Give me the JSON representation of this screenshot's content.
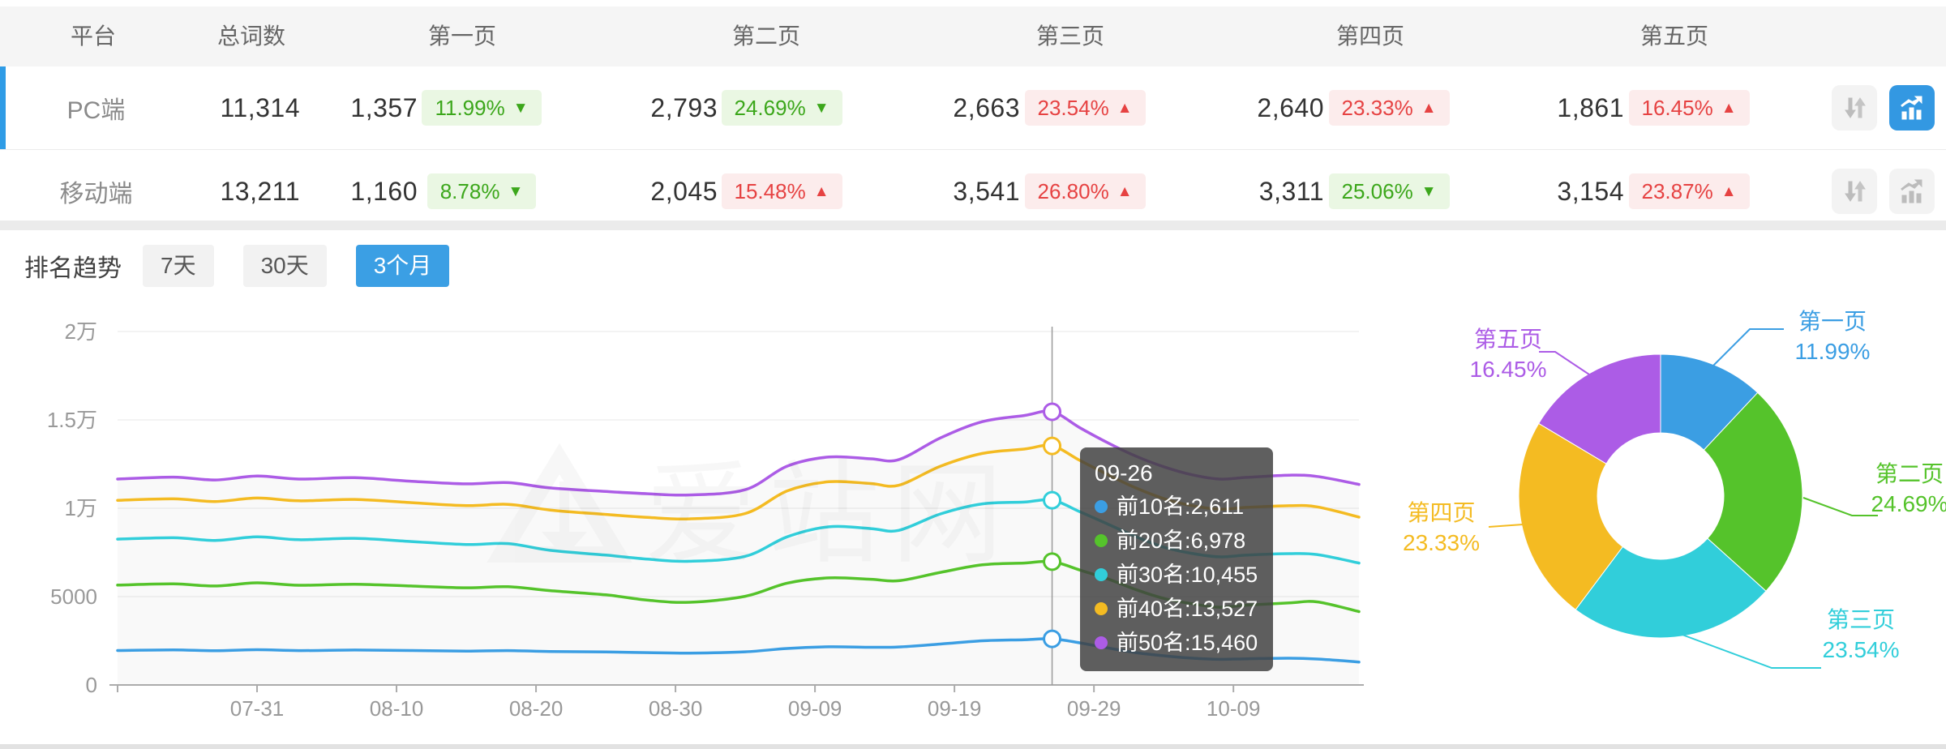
{
  "table": {
    "headers": [
      "平台",
      "总词数",
      "第一页",
      "第二页",
      "第三页",
      "第四页",
      "第五页"
    ],
    "rows": [
      {
        "platform": "PC端",
        "total": "11,314",
        "selected": "true",
        "chart_active": "true",
        "pages": [
          {
            "count": "1,357",
            "pct": "11.99%",
            "trend": "down"
          },
          {
            "count": "2,793",
            "pct": "24.69%",
            "trend": "down"
          },
          {
            "count": "2,663",
            "pct": "23.54%",
            "trend": "up"
          },
          {
            "count": "2,640",
            "pct": "23.33%",
            "trend": "up"
          },
          {
            "count": "1,861",
            "pct": "16.45%",
            "trend": "up"
          }
        ]
      },
      {
        "platform": "移动端",
        "total": "13,211",
        "selected": "false",
        "chart_active": "false",
        "pages": [
          {
            "count": "1,160",
            "pct": "8.78%",
            "trend": "down"
          },
          {
            "count": "2,045",
            "pct": "15.48%",
            "trend": "up"
          },
          {
            "count": "3,541",
            "pct": "26.80%",
            "trend": "up"
          },
          {
            "count": "3,311",
            "pct": "25.06%",
            "trend": "down"
          },
          {
            "count": "3,154",
            "pct": "23.87%",
            "trend": "up"
          }
        ]
      }
    ]
  },
  "trend": {
    "title": "排名趋势",
    "tabs": [
      {
        "label": "7天",
        "active": "false"
      },
      {
        "label": "30天",
        "active": "false"
      },
      {
        "label": "3个月",
        "active": "true"
      }
    ]
  },
  "tooltip": {
    "date": "09-26",
    "items": [
      {
        "name": "前10名",
        "value": "2,611",
        "color": "#3b9ee3"
      },
      {
        "name": "前20名",
        "value": "6,978",
        "color": "#55c32b"
      },
      {
        "name": "前30名",
        "value": "10,455",
        "color": "#31ceda"
      },
      {
        "name": "前40名",
        "value": "13,527",
        "color": "#f4bb22"
      },
      {
        "name": "前50名",
        "value": "15,460",
        "color": "#ac5ce6"
      }
    ]
  },
  "watermark": "爱站网",
  "chart_data": [
    {
      "type": "line",
      "title": "排名趋势 3个月",
      "ylim": [
        0,
        20000
      ],
      "y_ticks": [
        {
          "value": 0,
          "label": "0"
        },
        {
          "value": 5000,
          "label": "5000"
        },
        {
          "value": 10000,
          "label": "1万"
        },
        {
          "value": 15000,
          "label": "1.5万"
        },
        {
          "value": 20000,
          "label": "2万"
        }
      ],
      "x_domain_days": 89,
      "x_ticks": [
        {
          "day": 0,
          "label": ""
        },
        {
          "day": 10,
          "label": "07-31"
        },
        {
          "day": 20,
          "label": "08-10"
        },
        {
          "day": 30,
          "label": "08-20"
        },
        {
          "day": 40,
          "label": "08-30"
        },
        {
          "day": 50,
          "label": "09-09"
        },
        {
          "day": 60,
          "label": "09-19"
        },
        {
          "day": 70,
          "label": "09-29"
        },
        {
          "day": 80,
          "label": "10-09"
        }
      ],
      "crosshair": {
        "day": 67,
        "date": "09-26"
      },
      "series": [
        {
          "name": "前10名",
          "color": "#3b9ee3",
          "crosshair_value": 2611,
          "anchors": [
            [
              0,
              1950
            ],
            [
              4,
              1985
            ],
            [
              7,
              1940
            ],
            [
              10,
              1995
            ],
            [
              13,
              1945
            ],
            [
              17,
              1975
            ],
            [
              21,
              1950
            ],
            [
              25,
              1915
            ],
            [
              28,
              1945
            ],
            [
              31,
              1895
            ],
            [
              35,
              1865
            ],
            [
              38,
              1830
            ],
            [
              41,
              1805
            ],
            [
              45,
              1875
            ],
            [
              48,
              2065
            ],
            [
              51,
              2160
            ],
            [
              54,
              2135
            ],
            [
              56,
              2150
            ],
            [
              59,
              2315
            ],
            [
              62,
              2500
            ],
            [
              65,
              2560
            ],
            [
              67,
              2611
            ],
            [
              69,
              2380
            ],
            [
              71,
              2095
            ],
            [
              73,
              1830
            ],
            [
              75,
              1650
            ],
            [
              77,
              1520
            ],
            [
              79,
              1450
            ],
            [
              81,
              1480
            ],
            [
              84,
              1515
            ],
            [
              86,
              1470
            ],
            [
              89,
              1300
            ]
          ]
        },
        {
          "name": "前20名",
          "color": "#55c32b",
          "crosshair_value": 6978,
          "anchors": [
            [
              0,
              5650
            ],
            [
              4,
              5720
            ],
            [
              7,
              5600
            ],
            [
              10,
              5780
            ],
            [
              13,
              5640
            ],
            [
              17,
              5700
            ],
            [
              21,
              5600
            ],
            [
              25,
              5500
            ],
            [
              28,
              5560
            ],
            [
              31,
              5340
            ],
            [
              35,
              5100
            ],
            [
              38,
              4800
            ],
            [
              41,
              4680
            ],
            [
              45,
              5020
            ],
            [
              48,
              5760
            ],
            [
              51,
              6060
            ],
            [
              54,
              5980
            ],
            [
              56,
              5900
            ],
            [
              59,
              6370
            ],
            [
              62,
              6800
            ],
            [
              65,
              6900
            ],
            [
              67,
              6978
            ],
            [
              69,
              6500
            ],
            [
              71,
              6000
            ],
            [
              73,
              5400
            ],
            [
              75,
              4900
            ],
            [
              77,
              4600
            ],
            [
              79,
              4400
            ],
            [
              81,
              4520
            ],
            [
              84,
              4640
            ],
            [
              86,
              4700
            ],
            [
              89,
              4150
            ]
          ]
        },
        {
          "name": "前30名",
          "color": "#31ceda",
          "crosshair_value": 10455,
          "anchors": [
            [
              0,
              8250
            ],
            [
              4,
              8330
            ],
            [
              7,
              8180
            ],
            [
              10,
              8380
            ],
            [
              13,
              8220
            ],
            [
              17,
              8300
            ],
            [
              21,
              8120
            ],
            [
              25,
              7950
            ],
            [
              28,
              8000
            ],
            [
              31,
              7620
            ],
            [
              35,
              7350
            ],
            [
              38,
              7120
            ],
            [
              41,
              7000
            ],
            [
              45,
              7280
            ],
            [
              48,
              8380
            ],
            [
              51,
              8950
            ],
            [
              54,
              8850
            ],
            [
              56,
              8750
            ],
            [
              59,
              9680
            ],
            [
              62,
              10250
            ],
            [
              65,
              10350
            ],
            [
              67,
              10455
            ],
            [
              69,
              9800
            ],
            [
              71,
              9100
            ],
            [
              73,
              8400
            ],
            [
              75,
              7800
            ],
            [
              77,
              7450
            ],
            [
              79,
              7250
            ],
            [
              81,
              7350
            ],
            [
              84,
              7430
            ],
            [
              86,
              7380
            ],
            [
              89,
              6900
            ]
          ]
        },
        {
          "name": "前40名",
          "color": "#f4bb22",
          "crosshair_value": 13527,
          "anchors": [
            [
              0,
              10450
            ],
            [
              4,
              10530
            ],
            [
              7,
              10380
            ],
            [
              10,
              10580
            ],
            [
              13,
              10420
            ],
            [
              17,
              10500
            ],
            [
              21,
              10320
            ],
            [
              25,
              10150
            ],
            [
              28,
              10220
            ],
            [
              31,
              9900
            ],
            [
              35,
              9650
            ],
            [
              38,
              9480
            ],
            [
              41,
              9400
            ],
            [
              45,
              9700
            ],
            [
              48,
              10980
            ],
            [
              51,
              11500
            ],
            [
              54,
              11400
            ],
            [
              56,
              11300
            ],
            [
              59,
              12380
            ],
            [
              62,
              13100
            ],
            [
              65,
              13350
            ],
            [
              67,
              13527
            ],
            [
              69,
              12700
            ],
            [
              71,
              11900
            ],
            [
              73,
              11150
            ],
            [
              75,
              10550
            ],
            [
              77,
              10150
            ],
            [
              79,
              9950
            ],
            [
              81,
              10050
            ],
            [
              84,
              10140
            ],
            [
              86,
              10080
            ],
            [
              89,
              9500
            ]
          ]
        },
        {
          "name": "前50名",
          "color": "#ac5ce6",
          "crosshair_value": 15460,
          "anchors": [
            [
              0,
              11650
            ],
            [
              4,
              11760
            ],
            [
              7,
              11600
            ],
            [
              10,
              11820
            ],
            [
              13,
              11650
            ],
            [
              17,
              11730
            ],
            [
              21,
              11530
            ],
            [
              25,
              11380
            ],
            [
              28,
              11450
            ],
            [
              31,
              11150
            ],
            [
              35,
              10950
            ],
            [
              38,
              10820
            ],
            [
              41,
              10750
            ],
            [
              45,
              11050
            ],
            [
              48,
              12380
            ],
            [
              51,
              12900
            ],
            [
              54,
              12800
            ],
            [
              56,
              12750
            ],
            [
              59,
              13980
            ],
            [
              62,
              14900
            ],
            [
              65,
              15250
            ],
            [
              67,
              15460
            ],
            [
              69,
              14550
            ],
            [
              71,
              13700
            ],
            [
              73,
              12950
            ],
            [
              75,
              12350
            ],
            [
              77,
              11900
            ],
            [
              79,
              11650
            ],
            [
              81,
              11750
            ],
            [
              84,
              11870
            ],
            [
              86,
              11800
            ],
            [
              89,
              11350
            ]
          ]
        }
      ]
    },
    {
      "type": "donut",
      "slices": [
        {
          "label": "第一页",
          "pct": 11.99,
          "pct_text": "11.99%",
          "color": "#3b9ee3"
        },
        {
          "label": "第二页",
          "pct": 24.69,
          "pct_text": "24.69%",
          "color": "#55c32b"
        },
        {
          "label": "第三页",
          "pct": 23.54,
          "pct_text": "23.54%",
          "color": "#31ceda"
        },
        {
          "label": "第四页",
          "pct": 23.33,
          "pct_text": "23.33%",
          "color": "#f4bb22"
        },
        {
          "label": "第五页",
          "pct": 16.45,
          "pct_text": "16.45%",
          "color": "#ac5ce6"
        }
      ]
    }
  ]
}
